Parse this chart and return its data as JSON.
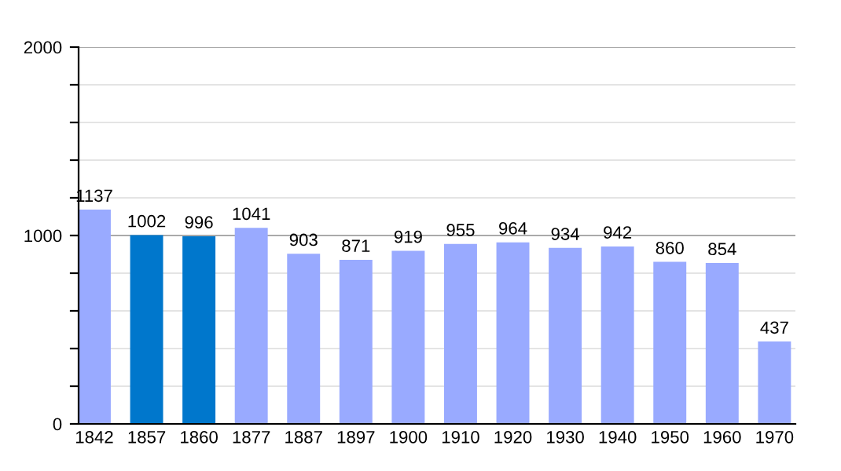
{
  "chart_data": {
    "type": "bar",
    "categories": [
      "1842",
      "1857",
      "1860",
      "1877",
      "1887",
      "1897",
      "1900",
      "1910",
      "1920",
      "1930",
      "1940",
      "1950",
      "1960",
      "1970"
    ],
    "values": [
      1137,
      1002,
      996,
      1041,
      903,
      871,
      919,
      955,
      964,
      934,
      942,
      860,
      854,
      437
    ],
    "colors": [
      "#99aaff",
      "#0077cc",
      "#0077cc",
      "#99aaff",
      "#99aaff",
      "#99aaff",
      "#99aaff",
      "#99aaff",
      "#99aaff",
      "#99aaff",
      "#99aaff",
      "#99aaff",
      "#99aaff",
      "#99aaff"
    ],
    "ylim": [
      0,
      2000
    ],
    "yticks": [
      0,
      {
        "value": 200,
        "label": null
      },
      {
        "value": 400,
        "label": null
      },
      {
        "value": 600,
        "label": null
      },
      {
        "value": 800,
        "label": null
      },
      1000,
      {
        "value": 1200,
        "label": null
      },
      {
        "value": 1400,
        "label": null
      },
      {
        "value": 1600,
        "label": null
      },
      {
        "value": 1800,
        "label": null
      },
      2000
    ],
    "grid": "y",
    "ref_lines": [
      {
        "axis": "y",
        "value": 1000,
        "color": "#aaaaaa"
      }
    ],
    "data_labels": true
  }
}
